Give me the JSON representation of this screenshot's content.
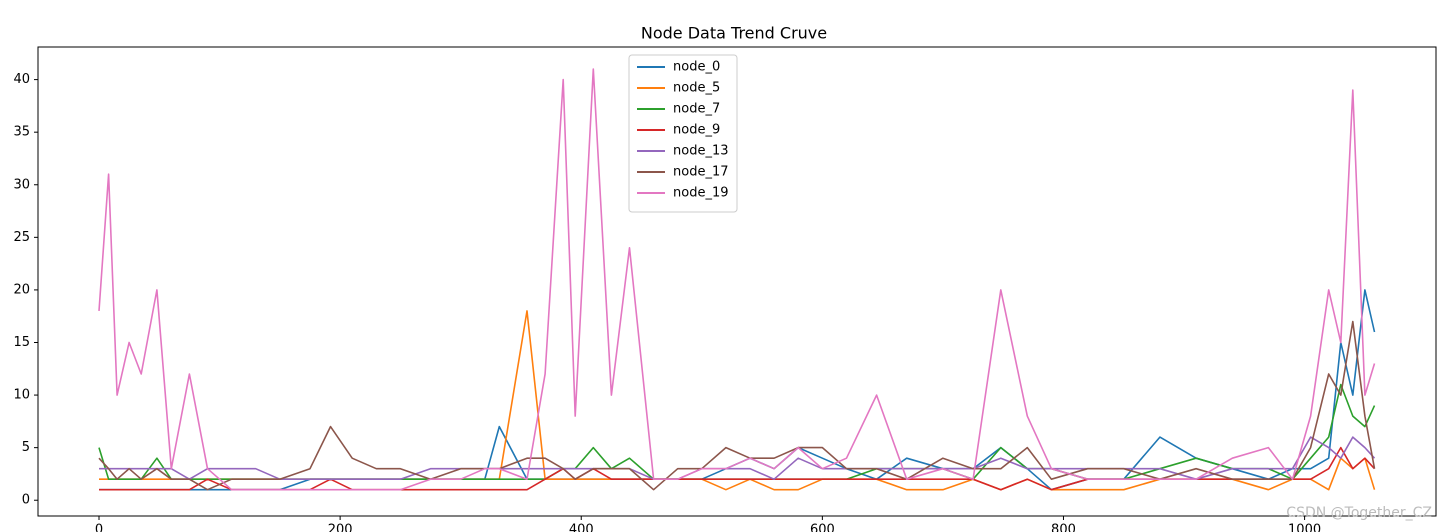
{
  "chart_data": {
    "type": "line",
    "title": "Node Data Trend Cruve",
    "annotation": "CSDN @Together_CZ",
    "x": [
      0,
      8,
      15,
      25,
      35,
      48,
      60,
      75,
      90,
      110,
      130,
      150,
      175,
      192,
      210,
      230,
      250,
      275,
      300,
      320,
      332,
      355,
      370,
      385,
      395,
      410,
      425,
      440,
      460,
      480,
      500,
      520,
      540,
      560,
      580,
      600,
      620,
      645,
      670,
      700,
      725,
      748,
      770,
      790,
      820,
      850,
      880,
      910,
      940,
      970,
      990,
      1005,
      1020,
      1030,
      1040,
      1050,
      1058
    ],
    "series": [
      {
        "name": "node_0",
        "color": "#1f77b4",
        "values": [
          1,
          1,
          1,
          1,
          1,
          1,
          1,
          1,
          1,
          1,
          1,
          1,
          2,
          2,
          2,
          2,
          2,
          2,
          2,
          2,
          7,
          2,
          2,
          2,
          2,
          2,
          2,
          2,
          2,
          2,
          2,
          3,
          4,
          3,
          5,
          4,
          3,
          2,
          4,
          3,
          3,
          5,
          3,
          1,
          2,
          2,
          6,
          4,
          3,
          2,
          3,
          3,
          4,
          15,
          10,
          20,
          16
        ]
      },
      {
        "name": "node_5",
        "color": "#ff7f0e",
        "values": [
          2,
          2,
          2,
          2,
          2,
          2,
          2,
          2,
          2,
          2,
          2,
          2,
          2,
          2,
          2,
          2,
          2,
          2,
          2,
          2,
          2,
          18,
          2,
          2,
          2,
          2,
          2,
          2,
          2,
          2,
          2,
          1,
          2,
          1,
          1,
          2,
          2,
          2,
          1,
          1,
          2,
          1,
          2,
          1,
          1,
          1,
          2,
          2,
          2,
          1,
          2,
          2,
          1,
          4,
          3,
          4,
          1
        ]
      },
      {
        "name": "node_7",
        "color": "#2ca02c",
        "values": [
          5,
          2,
          2,
          2,
          2,
          4,
          2,
          2,
          2,
          2,
          2,
          2,
          2,
          2,
          2,
          2,
          2,
          2,
          2,
          2,
          2,
          2,
          2,
          3,
          3,
          5,
          3,
          4,
          2,
          2,
          2,
          2,
          2,
          2,
          2,
          2,
          2,
          3,
          3,
          3,
          2,
          5,
          3,
          3,
          2,
          2,
          3,
          4,
          3,
          3,
          2,
          4,
          6,
          11,
          8,
          7,
          9
        ]
      },
      {
        "name": "node_9",
        "color": "#d62728",
        "values": [
          1,
          1,
          1,
          1,
          1,
          1,
          1,
          1,
          2,
          1,
          1,
          1,
          1,
          2,
          1,
          1,
          1,
          1,
          1,
          1,
          1,
          1,
          2,
          3,
          2,
          3,
          2,
          2,
          2,
          2,
          2,
          2,
          2,
          2,
          2,
          2,
          2,
          2,
          2,
          2,
          2,
          1,
          2,
          1,
          2,
          2,
          2,
          2,
          2,
          2,
          2,
          2,
          3,
          5,
          3,
          4,
          3
        ]
      },
      {
        "name": "node_13",
        "color": "#9467bd",
        "values": [
          3,
          3,
          3,
          3,
          3,
          3,
          3,
          2,
          3,
          3,
          3,
          2,
          2,
          2,
          2,
          2,
          2,
          3,
          3,
          3,
          3,
          3,
          3,
          3,
          3,
          3,
          3,
          3,
          2,
          2,
          3,
          3,
          3,
          2,
          4,
          3,
          3,
          3,
          3,
          3,
          3,
          4,
          3,
          3,
          3,
          3,
          3,
          2,
          3,
          3,
          3,
          6,
          5,
          4,
          6,
          5,
          4
        ]
      },
      {
        "name": "node_17",
        "color": "#8c564b",
        "values": [
          4,
          3,
          2,
          3,
          2,
          3,
          2,
          2,
          1,
          2,
          2,
          2,
          3,
          7,
          4,
          3,
          3,
          2,
          3,
          3,
          3,
          4,
          4,
          3,
          2,
          3,
          3,
          3,
          1,
          3,
          3,
          5,
          4,
          4,
          5,
          5,
          3,
          3,
          2,
          4,
          3,
          3,
          5,
          2,
          3,
          3,
          2,
          3,
          2,
          2,
          2,
          5,
          12,
          10,
          17,
          8,
          3
        ]
      },
      {
        "name": "node_19",
        "color": "#e377c2",
        "values": [
          18,
          31,
          10,
          15,
          12,
          20,
          3,
          12,
          3,
          1,
          1,
          1,
          1,
          1,
          1,
          1,
          1,
          2,
          2,
          3,
          3,
          2,
          12,
          40,
          8,
          41,
          10,
          24,
          2,
          2,
          3,
          3,
          4,
          3,
          5,
          3,
          4,
          10,
          2,
          3,
          2,
          20,
          8,
          3,
          2,
          2,
          2,
          2,
          4,
          5,
          2,
          8,
          20,
          15,
          39,
          10,
          13
        ]
      }
    ],
    "xlim": [
      -50.6,
      1109
    ],
    "ylim": [
      -1.5,
      43.1
    ],
    "xticks": [
      0,
      200,
      400,
      600,
      800,
      1000
    ],
    "yticks": [
      0,
      5,
      10,
      15,
      20,
      25,
      30,
      35,
      40
    ],
    "legend": "upper center"
  }
}
